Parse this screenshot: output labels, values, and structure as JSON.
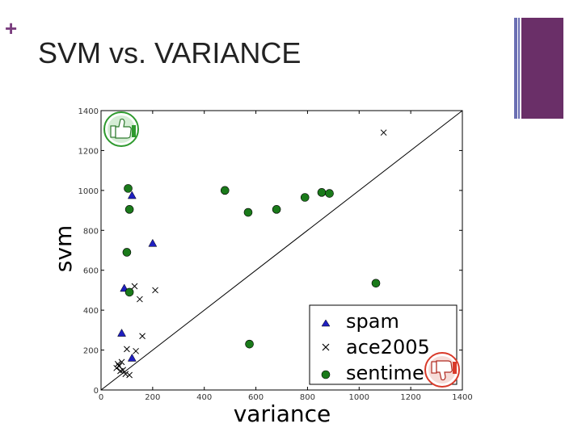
{
  "slide": {
    "plus": "+",
    "title": "SVM vs. VARIANCE"
  },
  "colors": {
    "accent_purple": "#6a2f68",
    "accent_blue_line": "#6b6fb3",
    "spam": "#1f1fc0",
    "ace2005": "#000000",
    "sentiment": "#1a7a1a",
    "thumbs_up": "#2e9a2e",
    "thumbs_down": "#d93a2a"
  },
  "icons": {
    "top_left": "thumbs-up-icon",
    "bottom_right": "thumbs-down-icon"
  },
  "chart_data": {
    "type": "scatter",
    "xlabel": "variance",
    "ylabel": "svm",
    "xlim": [
      0,
      1400
    ],
    "ylim": [
      0,
      1400
    ],
    "x_ticks": [
      "0",
      "200",
      "400",
      "600",
      "800",
      "1000",
      "1200",
      "1400"
    ],
    "y_ticks": [
      "0",
      "200",
      "400",
      "600",
      "800",
      "1000",
      "1200",
      "1400"
    ],
    "diagonal": true,
    "legend_position": "bottom-right",
    "series": [
      {
        "name": "spam",
        "marker": "triangle",
        "points": [
          [
            120,
            975
          ],
          [
            200,
            735
          ],
          [
            90,
            510
          ],
          [
            80,
            285
          ],
          [
            120,
            160
          ]
        ]
      },
      {
        "name": "ace2005",
        "marker": "x",
        "points": [
          [
            1095,
            1290
          ],
          [
            130,
            520
          ],
          [
            210,
            500
          ],
          [
            150,
            455
          ],
          [
            160,
            270
          ],
          [
            100,
            205
          ],
          [
            135,
            195
          ],
          [
            70,
            120
          ],
          [
            60,
            110
          ],
          [
            75,
            95
          ],
          [
            85,
            100
          ],
          [
            95,
            80
          ],
          [
            65,
            130
          ],
          [
            110,
            75
          ],
          [
            80,
            140
          ]
        ]
      },
      {
        "name": "sentiment",
        "marker": "circle",
        "points": [
          [
            105,
            1010
          ],
          [
            480,
            1000
          ],
          [
            570,
            890
          ],
          [
            680,
            905
          ],
          [
            790,
            965
          ],
          [
            855,
            990
          ],
          [
            885,
            985
          ],
          [
            110,
            905
          ],
          [
            100,
            690
          ],
          [
            110,
            490
          ],
          [
            1065,
            535
          ],
          [
            575,
            230
          ]
        ]
      }
    ],
    "legend_labels": [
      "spam",
      "ace2005",
      "sentime"
    ]
  }
}
